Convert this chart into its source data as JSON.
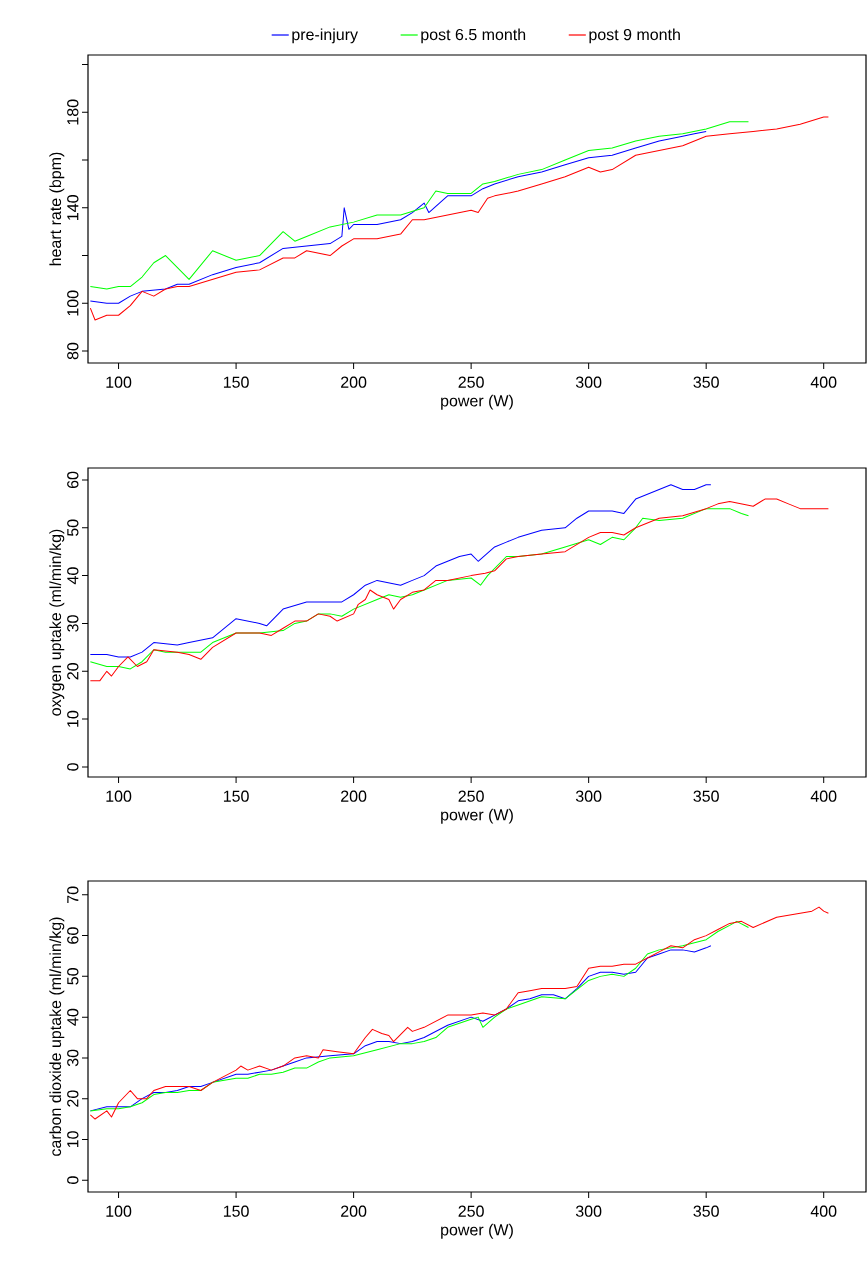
{
  "chart_data": [
    {
      "type": "line",
      "xlabel": "power (W)",
      "ylabel": "heart rate (bpm)",
      "xlim": [
        87,
        418
      ],
      "ylim": [
        75,
        204
      ],
      "xticks": [
        100,
        150,
        200,
        250,
        300,
        350,
        400
      ],
      "yticks": [
        80,
        100,
        {
          "value": 120,
          "label": null
        },
        140,
        {
          "value": 160,
          "label": null
        },
        180,
        {
          "value": 200,
          "label": null
        }
      ],
      "legend": "top",
      "line_style": "solid",
      "series": [
        {
          "name": "pre-injury",
          "color": "#0000ff",
          "x": [
            88,
            95,
            100,
            105,
            110,
            120,
            125,
            130,
            140,
            150,
            160,
            170,
            180,
            190,
            195,
            196,
            198,
            200,
            210,
            220,
            225,
            230,
            232,
            240,
            250,
            255,
            260,
            270,
            280,
            290,
            300,
            310,
            320,
            330,
            340,
            345,
            350
          ],
          "values": [
            101,
            100,
            100,
            103,
            105,
            106,
            108,
            108,
            112,
            115,
            117,
            123,
            124,
            125,
            128,
            140,
            131,
            133,
            133,
            135,
            138,
            142,
            138,
            145,
            145,
            148,
            150,
            153,
            155,
            158,
            161,
            162,
            165,
            168,
            170,
            171,
            172
          ]
        },
        {
          "name": "post 6.5 month",
          "color": "#00ff00",
          "x": [
            88,
            95,
            100,
            105,
            110,
            115,
            120,
            125,
            130,
            140,
            150,
            160,
            170,
            175,
            180,
            190,
            200,
            210,
            220,
            230,
            235,
            240,
            250,
            255,
            260,
            270,
            280,
            290,
            300,
            310,
            320,
            330,
            340,
            350,
            360,
            368
          ],
          "values": [
            107,
            106,
            107,
            107,
            111,
            117,
            120,
            115,
            110,
            122,
            118,
            120,
            130,
            126,
            128,
            132,
            134,
            137,
            137,
            140,
            147,
            146,
            146,
            150,
            151,
            154,
            156,
            160,
            164,
            165,
            168,
            170,
            171,
            173,
            176,
            176
          ]
        },
        {
          "name": "post 9 month",
          "color": "#ff0000",
          "x": [
            88,
            90,
            95,
            100,
            105,
            110,
            115,
            120,
            125,
            130,
            140,
            150,
            160,
            170,
            175,
            180,
            190,
            195,
            200,
            210,
            220,
            225,
            230,
            240,
            250,
            253,
            257,
            260,
            270,
            280,
            290,
            300,
            305,
            310,
            320,
            330,
            340,
            350,
            360,
            370,
            380,
            390,
            400,
            402
          ],
          "values": [
            98,
            93,
            95,
            95,
            99,
            105,
            103,
            106,
            107,
            107,
            110,
            113,
            114,
            119,
            119,
            122,
            120,
            124,
            127,
            127,
            129,
            135,
            135,
            137,
            139,
            138,
            144,
            145,
            147,
            150,
            153,
            157,
            155,
            156,
            162,
            164,
            166,
            170,
            171,
            172,
            173,
            175,
            178,
            178
          ]
        }
      ]
    },
    {
      "type": "line",
      "xlabel": "power (W)",
      "ylabel": "oxygen uptake (ml/min/kg)",
      "xlim": [
        87,
        418
      ],
      "ylim": [
        -2.1,
        62.5
      ],
      "xticks": [
        100,
        150,
        200,
        250,
        300,
        350,
        400
      ],
      "yticks": [
        0,
        10,
        20,
        30,
        40,
        50,
        60
      ],
      "line_style": "solid",
      "series": [
        {
          "color": "#0000ff",
          "x": [
            88,
            95,
            100,
            105,
            110,
            115,
            125,
            130,
            140,
            150,
            160,
            163,
            170,
            180,
            190,
            195,
            200,
            205,
            210,
            220,
            225,
            230,
            235,
            245,
            250,
            253,
            260,
            265,
            270,
            280,
            290,
            295,
            300,
            310,
            315,
            320,
            325,
            330,
            335,
            340,
            345,
            350,
            352
          ],
          "values": [
            23.5,
            23.5,
            23,
            23,
            24,
            26,
            25.5,
            26,
            27,
            31,
            30,
            29.5,
            33,
            34.5,
            34.5,
            34.5,
            36,
            38,
            39,
            38,
            39,
            40,
            42,
            44,
            44.5,
            43,
            46,
            47,
            48,
            49.5,
            50,
            52,
            53.5,
            53.5,
            53,
            56,
            57,
            58,
            59,
            58,
            58,
            59,
            59
          ]
        },
        {
          "color": "#00ff00",
          "x": [
            88,
            95,
            100,
            105,
            110,
            115,
            120,
            130,
            135,
            140,
            150,
            160,
            170,
            175,
            180,
            185,
            190,
            195,
            200,
            210,
            215,
            220,
            225,
            230,
            240,
            250,
            254,
            257,
            265,
            270,
            280,
            290,
            300,
            305,
            310,
            315,
            320,
            323,
            330,
            340,
            350,
            355,
            360,
            365,
            368
          ],
          "values": [
            22,
            21,
            21,
            20.5,
            22,
            24.5,
            24,
            24,
            24,
            26,
            28,
            28,
            28.5,
            30,
            30.5,
            32,
            32,
            31.5,
            33,
            35,
            36,
            35.5,
            36,
            37,
            39,
            39.5,
            38,
            40,
            44,
            44,
            44.5,
            46,
            47.5,
            46.5,
            48,
            47.5,
            50,
            52,
            51.5,
            52,
            54,
            54,
            54,
            53,
            52.5
          ]
        },
        {
          "color": "#ff0000",
          "x": [
            88,
            92,
            95,
            97,
            100,
            104,
            108,
            112,
            115,
            125,
            130,
            135,
            140,
            150,
            160,
            165,
            170,
            175,
            180,
            185,
            190,
            193,
            200,
            202,
            205,
            207,
            210,
            215,
            217,
            220,
            225,
            230,
            235,
            240,
            250,
            256,
            260,
            265,
            270,
            280,
            290,
            300,
            305,
            310,
            315,
            320,
            325,
            330,
            340,
            350,
            355,
            360,
            365,
            370,
            375,
            380,
            385,
            390,
            395,
            400,
            402
          ],
          "values": [
            18,
            18,
            20,
            19,
            21,
            23,
            21,
            22,
            24.5,
            24,
            23.5,
            22.5,
            25,
            28,
            28,
            27.5,
            29,
            30.5,
            30.5,
            32,
            31.5,
            30.5,
            32,
            34,
            35,
            37,
            36,
            35,
            33,
            35,
            36.5,
            37,
            39,
            39,
            40,
            40.5,
            41,
            43.5,
            44,
            44.5,
            45,
            48,
            49,
            49,
            48.5,
            50,
            51,
            52,
            52.5,
            54,
            55,
            55.5,
            55,
            54.5,
            56,
            56,
            55,
            54,
            54,
            54,
            54
          ]
        }
      ]
    },
    {
      "type": "line",
      "xlabel": "power (W)",
      "ylabel": "carbon dioxide uptake (ml/min/kg)",
      "xlim": [
        87,
        418
      ],
      "ylim": [
        -2.9,
        73.4
      ],
      "xticks": [
        100,
        150,
        200,
        250,
        300,
        350,
        400
      ],
      "yticks": [
        0,
        10,
        20,
        30,
        40,
        50,
        60,
        70
      ],
      "line_style": "solid",
      "series": [
        {
          "color": "#0000ff",
          "x": [
            88,
            95,
            100,
            105,
            110,
            115,
            120,
            125,
            130,
            135,
            140,
            150,
            155,
            160,
            165,
            170,
            175,
            180,
            190,
            200,
            205,
            210,
            215,
            220,
            225,
            230,
            240,
            250,
            255,
            260,
            265,
            270,
            275,
            280,
            285,
            290,
            295,
            300,
            305,
            310,
            315,
            320,
            325,
            330,
            335,
            340,
            345,
            350,
            352
          ],
          "values": [
            17,
            18,
            18,
            18,
            20,
            21.5,
            21.5,
            22,
            23,
            23,
            24,
            26,
            26,
            26.5,
            27,
            28,
            29,
            30,
            30.5,
            31,
            33,
            34,
            34,
            33.5,
            34,
            35,
            38,
            40,
            39,
            40.5,
            42,
            44,
            44.5,
            45.5,
            45.5,
            44.5,
            47,
            50,
            51,
            51,
            50.5,
            51,
            54.5,
            55.5,
            56.5,
            56.5,
            56,
            57,
            57.5
          ]
        },
        {
          "color": "#00ff00",
          "x": [
            88,
            95,
            100,
            105,
            110,
            115,
            120,
            125,
            130,
            135,
            140,
            150,
            155,
            160,
            165,
            170,
            175,
            180,
            185,
            190,
            200,
            210,
            220,
            225,
            230,
            235,
            240,
            250,
            253,
            255,
            260,
            265,
            270,
            280,
            290,
            300,
            305,
            310,
            315,
            320,
            325,
            330,
            340,
            350,
            355,
            360,
            363,
            368
          ],
          "values": [
            17,
            17.5,
            17.5,
            18,
            19,
            21,
            21.5,
            21.5,
            22,
            22,
            24,
            25,
            25,
            26,
            26,
            26.5,
            27.5,
            27.5,
            29,
            30,
            30.5,
            32,
            33.5,
            33.5,
            34,
            35,
            37.5,
            39.5,
            40,
            37.5,
            40,
            42,
            43,
            45,
            44.5,
            49,
            50,
            50.5,
            50,
            52,
            55.5,
            56.5,
            57.5,
            59,
            61,
            62.5,
            63.5,
            62
          ]
        },
        {
          "color": "#ff0000",
          "x": [
            88,
            90,
            95,
            97,
            100,
            105,
            108,
            112,
            115,
            120,
            130,
            135,
            140,
            150,
            152,
            155,
            160,
            165,
            170,
            175,
            180,
            185,
            187,
            193,
            200,
            205,
            208,
            212,
            215,
            217,
            223,
            225,
            230,
            240,
            250,
            255,
            260,
            265,
            270,
            275,
            280,
            290,
            295,
            300,
            305,
            310,
            315,
            320,
            325,
            330,
            335,
            340,
            345,
            350,
            355,
            360,
            365,
            370,
            380,
            390,
            395,
            398,
            400,
            402
          ],
          "values": [
            16,
            15,
            17,
            15.5,
            19,
            22,
            20,
            20,
            22,
            23,
            23,
            22,
            24,
            27,
            28,
            27,
            28,
            27,
            28,
            30,
            30.5,
            30,
            32,
            31.5,
            31,
            35,
            37,
            36,
            35.5,
            34,
            37.5,
            36.5,
            37.5,
            40.5,
            40.5,
            41,
            40.5,
            42,
            46,
            46.5,
            47,
            47,
            47.5,
            52,
            52.5,
            52.5,
            53,
            53,
            54.5,
            56,
            57.5,
            57,
            59,
            60,
            61.5,
            63,
            63.5,
            62,
            64.5,
            65.5,
            66,
            67,
            66,
            65.5
          ]
        }
      ]
    }
  ]
}
